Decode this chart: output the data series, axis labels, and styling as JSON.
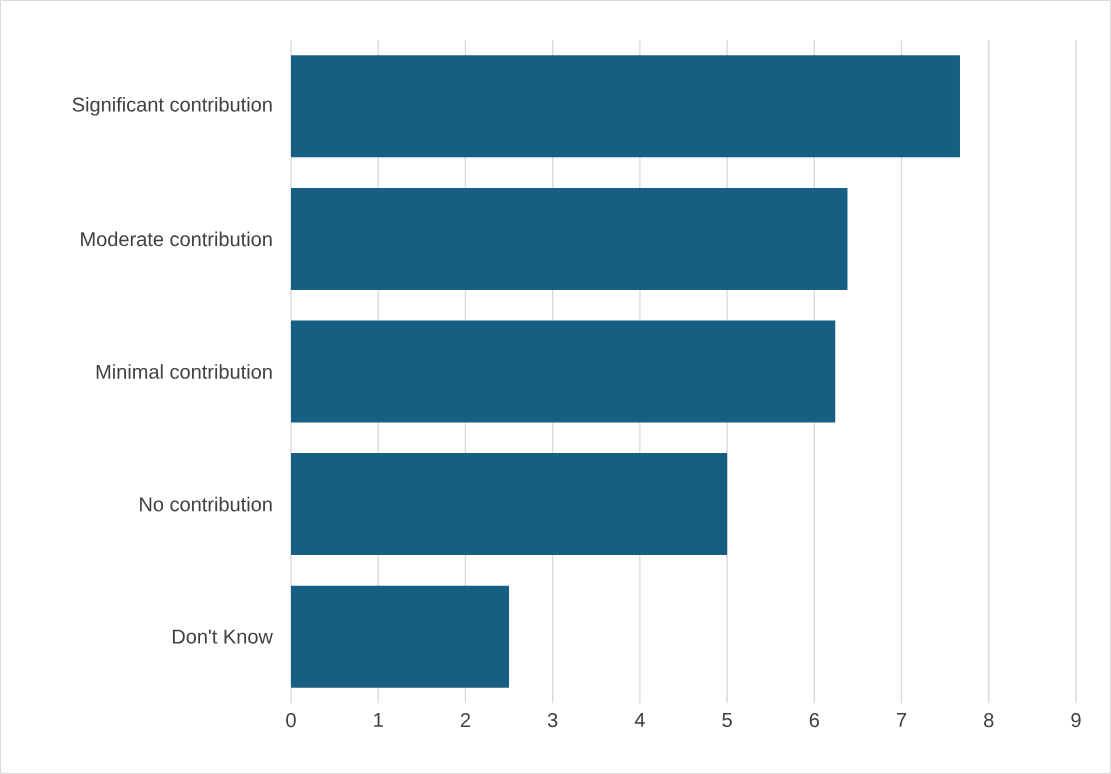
{
  "chart_data": {
    "type": "bar",
    "orientation": "horizontal",
    "categories": [
      "Significant contribution",
      "Moderate contribution",
      "Minimal contribution",
      "No contribution",
      "Don't Know"
    ],
    "values": [
      7.67,
      6.38,
      6.24,
      5.0,
      2.5
    ],
    "color": "#175f82",
    "xlim": [
      0,
      9
    ],
    "xticks": [
      0,
      1,
      2,
      3,
      4,
      5,
      6,
      7,
      8,
      9
    ],
    "grid": "x"
  }
}
